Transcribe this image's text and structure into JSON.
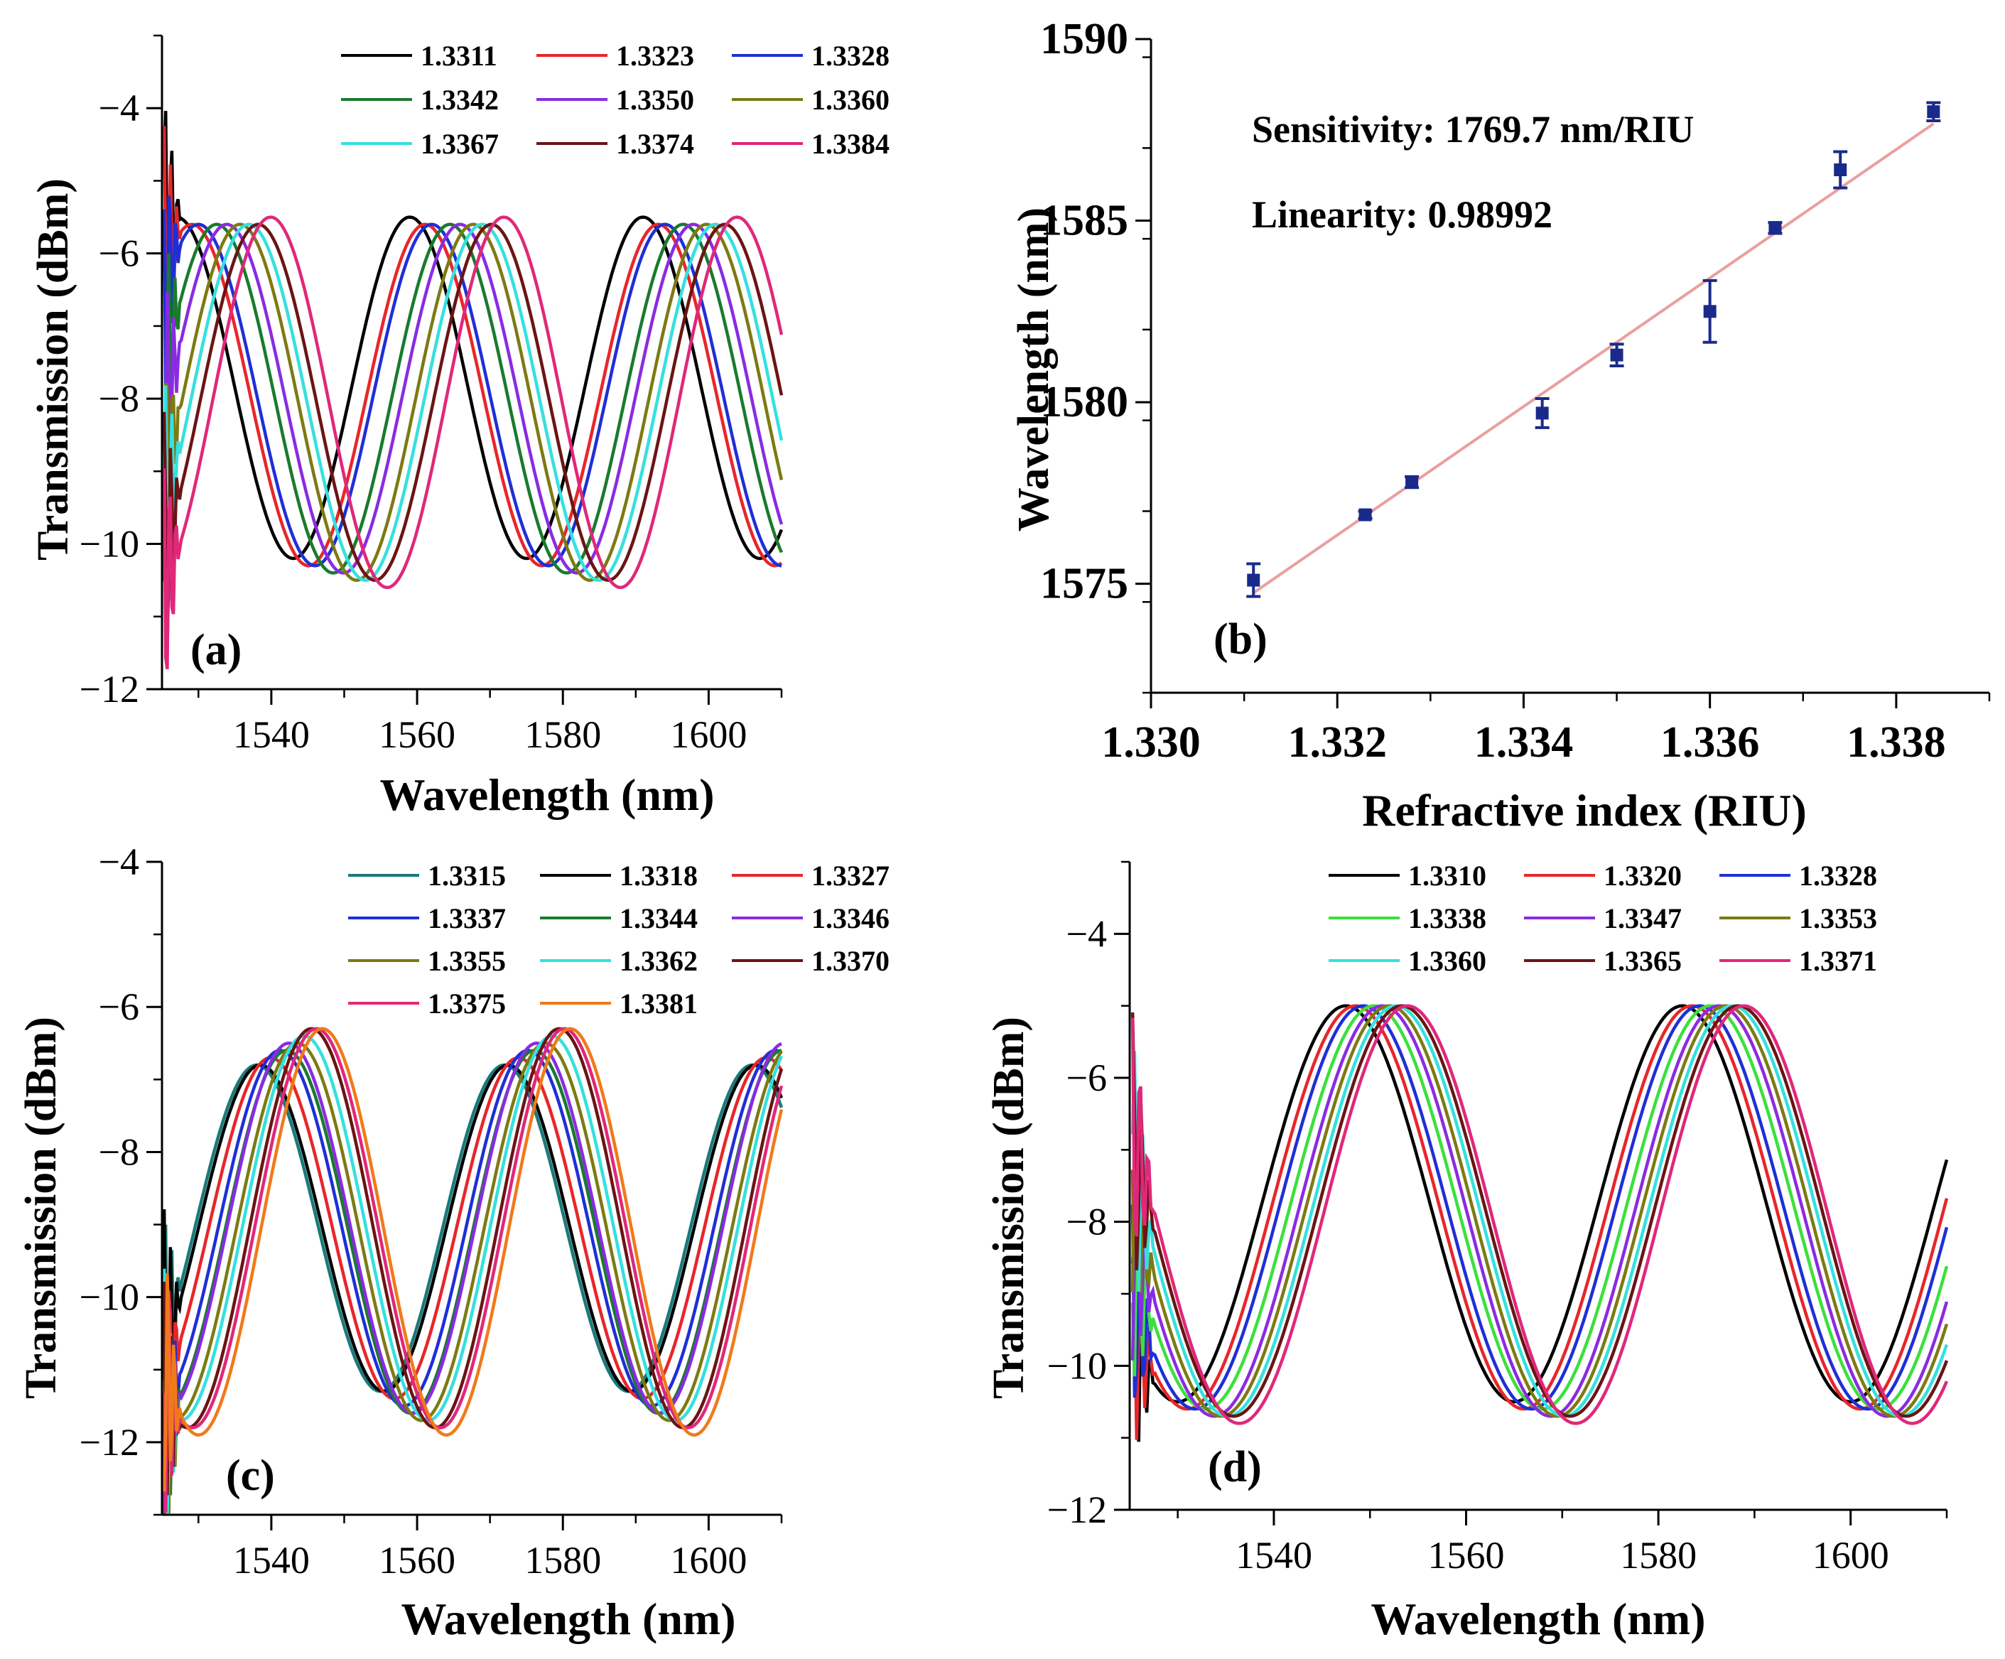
{
  "chart_data": [
    {
      "id": "a",
      "type": "line",
      "panel_label": "(a)",
      "xlabel": "Wavelength (nm)",
      "ylabel": "Transmission (dBm)",
      "xlim": [
        1525,
        1610
      ],
      "ylim": [
        -12,
        -3
      ],
      "xticks": [
        1540,
        1560,
        1580,
        1600
      ],
      "yticks": [
        -12,
        -10,
        -8,
        -6,
        -4
      ],
      "series": [
        {
          "name": "1.3311",
          "color": "#000000",
          "shift": 0.0,
          "top": -5.5,
          "bottom": -10.2
        },
        {
          "name": "1.3323",
          "color": "#e8262a",
          "shift": 2.1,
          "top": -5.6,
          "bottom": -10.3
        },
        {
          "name": "1.3328",
          "color": "#1f2fd6",
          "shift": 3.0,
          "top": -5.6,
          "bottom": -10.3
        },
        {
          "name": "1.3342",
          "color": "#1a7a2e",
          "shift": 5.5,
          "top": -5.6,
          "bottom": -10.4
        },
        {
          "name": "1.3350",
          "color": "#8a2be2",
          "shift": 6.9,
          "top": -5.6,
          "bottom": -10.4
        },
        {
          "name": "1.3360",
          "color": "#7c7a12",
          "shift": 8.7,
          "top": -5.6,
          "bottom": -10.5
        },
        {
          "name": "1.3367",
          "color": "#35e0e0",
          "shift": 9.9,
          "top": -5.6,
          "bottom": -10.5
        },
        {
          "name": "1.3374",
          "color": "#6b1414",
          "shift": 11.2,
          "top": -5.6,
          "bottom": -10.5
        },
        {
          "name": "1.3384",
          "color": "#e0287a",
          "shift": 12.9,
          "top": -5.5,
          "bottom": -10.6
        }
      ],
      "period": 32,
      "dip_ref": 1543
    },
    {
      "id": "b",
      "type": "scatter",
      "panel_label": "(b)",
      "xlabel": "Refractive index (RIU)",
      "ylabel": "Wavelength (nm)",
      "xlim": [
        1.33,
        1.339
      ],
      "ylim": [
        1572,
        1590
      ],
      "xticks": [
        "1.330",
        "1.332",
        "1.334",
        "1.336",
        "1.338"
      ],
      "yticks": [
        1575,
        1580,
        1585,
        1590
      ],
      "annotations": [
        "Sensitivity: 1769.7 nm/RIU",
        "Linearity: 0.98992"
      ],
      "fit": {
        "slope": 1769.7,
        "x_range": [
          1.3311,
          1.3384
        ],
        "y_start": 1574.75,
        "color": "#e8a0a0"
      },
      "points": [
        {
          "x": 1.3311,
          "y": 1575.1,
          "err": 0.45
        },
        {
          "x": 1.3323,
          "y": 1576.9,
          "err": 0.1
        },
        {
          "x": 1.3328,
          "y": 1577.8,
          "err": 0.15
        },
        {
          "x": 1.3342,
          "y": 1579.7,
          "err": 0.4
        },
        {
          "x": 1.335,
          "y": 1581.3,
          "err": 0.3
        },
        {
          "x": 1.336,
          "y": 1582.5,
          "err": 0.85
        },
        {
          "x": 1.3367,
          "y": 1584.8,
          "err": 0.15
        },
        {
          "x": 1.3374,
          "y": 1586.4,
          "err": 0.5
        },
        {
          "x": 1.3384,
          "y": 1588.0,
          "err": 0.25
        }
      ],
      "marker_color": "#1a2a8a"
    },
    {
      "id": "c",
      "type": "line",
      "panel_label": "(c)",
      "xlabel": "Wavelength (nm)",
      "ylabel": "Transmission (dBm)",
      "xlim": [
        1525,
        1610
      ],
      "ylim": [
        -13,
        -4
      ],
      "xticks": [
        1540,
        1560,
        1580,
        1600
      ],
      "yticks": [
        -12,
        -10,
        -8,
        -6,
        -4
      ],
      "series": [
        {
          "name": "1.3315",
          "color": "#1a7a7a",
          "shift": 0.0,
          "top": -6.8,
          "bottom": -11.3
        },
        {
          "name": "1.3318",
          "color": "#000000",
          "shift": 0.5,
          "top": -6.8,
          "bottom": -11.3
        },
        {
          "name": "1.3327",
          "color": "#e8262a",
          "shift": 1.9,
          "top": -6.7,
          "bottom": -11.4
        },
        {
          "name": "1.3337",
          "color": "#1f2fd6",
          "shift": 3.2,
          "top": -6.6,
          "bottom": -11.5
        },
        {
          "name": "1.3344",
          "color": "#1a7a2e",
          "shift": 4.1,
          "top": -6.6,
          "bottom": -11.6
        },
        {
          "name": "1.3346",
          "color": "#8a2be2",
          "shift": 4.4,
          "top": -6.5,
          "bottom": -11.6
        },
        {
          "name": "1.3355",
          "color": "#7c7a12",
          "shift": 5.6,
          "top": -6.5,
          "bottom": -11.7
        },
        {
          "name": "1.3362",
          "color": "#35e0e0",
          "shift": 6.5,
          "top": -6.4,
          "bottom": -11.7
        },
        {
          "name": "1.3370",
          "color": "#6b1414",
          "shift": 7.5,
          "top": -6.3,
          "bottom": -11.8
        },
        {
          "name": "1.3375",
          "color": "#e0287a",
          "shift": 8.2,
          "top": -6.3,
          "bottom": -11.8
        },
        {
          "name": "1.3381",
          "color": "#f07a1a",
          "shift": 9.0,
          "top": -6.3,
          "bottom": -11.9
        }
      ],
      "period": 34,
      "dip_ref": 1555
    },
    {
      "id": "d",
      "type": "line",
      "panel_label": "(d)",
      "xlabel": "Wavelength (nm)",
      "ylabel": "Transmission (dBm)",
      "xlim": [
        1525,
        1610
      ],
      "ylim": [
        -12,
        -3
      ],
      "xticks": [
        1540,
        1560,
        1580,
        1600
      ],
      "yticks": [
        -12,
        -10,
        -8,
        -6,
        -4
      ],
      "series": [
        {
          "name": "1.3310",
          "color": "#000000",
          "shift": 0.0,
          "top": -5.0,
          "bottom": -10.5
        },
        {
          "name": "1.3320",
          "color": "#e8262a",
          "shift": 1.0,
          "top": -5.0,
          "bottom": -10.6
        },
        {
          "name": "1.3328",
          "color": "#1f2fd6",
          "shift": 1.8,
          "top": -5.0,
          "bottom": -10.6
        },
        {
          "name": "1.3338",
          "color": "#3ce03c",
          "shift": 2.9,
          "top": -5.0,
          "bottom": -10.6
        },
        {
          "name": "1.3347",
          "color": "#8a2be2",
          "shift": 3.8,
          "top": -5.0,
          "bottom": -10.7
        },
        {
          "name": "1.3353",
          "color": "#7c7a12",
          "shift": 4.5,
          "top": -5.0,
          "bottom": -10.7
        },
        {
          "name": "1.3360",
          "color": "#35e0e0",
          "shift": 5.2,
          "top": -5.0,
          "bottom": -10.7
        },
        {
          "name": "1.3365",
          "color": "#6b1414",
          "shift": 5.8,
          "top": -5.0,
          "bottom": -10.7
        },
        {
          "name": "1.3371",
          "color": "#e0287a",
          "shift": 6.4,
          "top": -5.0,
          "bottom": -10.8
        }
      ],
      "period": 35,
      "dip_ref": 1565
    }
  ]
}
